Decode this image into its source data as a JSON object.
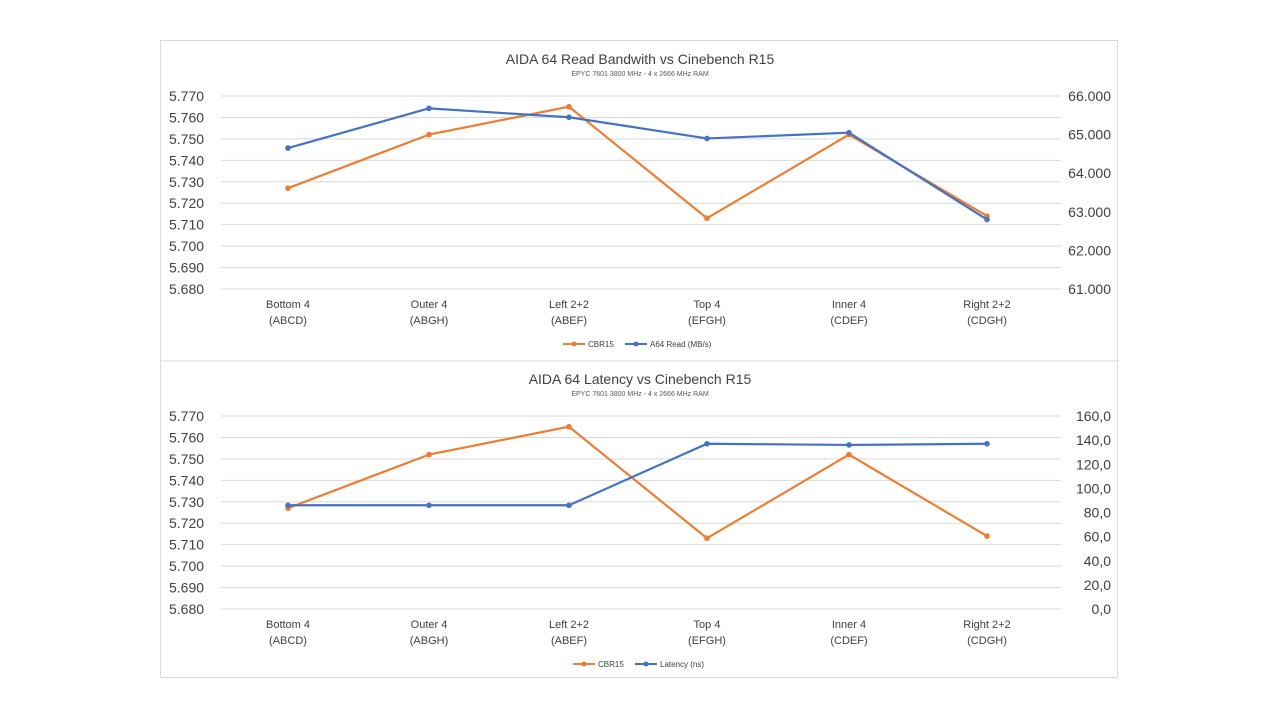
{
  "chart_data": [
    {
      "type": "line",
      "title": "AIDA 64 Read Bandwith vs Cinebench R15",
      "subtitle": "EPYC 7601 3800 MHz - 4 x 2666 MHz RAM",
      "categories": [
        "Bottom 4\n(ABCD)",
        "Outer 4\n(ABGH)",
        "Left 2+2\n(ABEF)",
        "Top 4\n(EFGH)",
        "Inner 4\n(CDEF)",
        "Right 2+2\n(CDGH)"
      ],
      "y_left": {
        "min": 5.68,
        "max": 5.77,
        "step": 0.01,
        "ticks": [
          "5.680",
          "5.690",
          "5.700",
          "5.710",
          "5.720",
          "5.730",
          "5.740",
          "5.750",
          "5.760",
          "5.770"
        ]
      },
      "y_right": {
        "min": 61000,
        "max": 66000,
        "step": 1000,
        "ticks": [
          "61.000",
          "62.000",
          "63.000",
          "64.000",
          "65.000",
          "66.000"
        ]
      },
      "grid": true,
      "legend_position": "bottom",
      "series": [
        {
          "name": "CBR15",
          "axis": "left",
          "color": "#ed7d31",
          "values": [
            5.727,
            5.752,
            5.765,
            5.713,
            5.752,
            5.714
          ]
        },
        {
          "name": "A64 Read (MB/s)",
          "axis": "right",
          "color": "#4472c4",
          "values": [
            64650,
            65680,
            65450,
            64900,
            65050,
            62800
          ]
        }
      ]
    },
    {
      "type": "line",
      "title": "AIDA 64 Latency vs Cinebench R15",
      "subtitle": "EPYC 7601 3800 MHz - 4 x 2666 MHz RAM",
      "categories": [
        "Bottom 4\n(ABCD)",
        "Outer 4\n(ABGH)",
        "Left 2+2\n(ABEF)",
        "Top 4\n(EFGH)",
        "Inner 4\n(CDEF)",
        "Right 2+2\n(CDGH)"
      ],
      "y_left": {
        "min": 5.68,
        "max": 5.77,
        "step": 0.01,
        "ticks": [
          "5.680",
          "5.690",
          "5.700",
          "5.710",
          "5.720",
          "5.730",
          "5.740",
          "5.750",
          "5.760",
          "5.770"
        ]
      },
      "y_right": {
        "min": 0,
        "max": 160,
        "step": 20,
        "ticks": [
          "0,0",
          "20,0",
          "40,0",
          "60,0",
          "80,0",
          "100,0",
          "120,0",
          "140,0",
          "160,0"
        ]
      },
      "grid": true,
      "legend_position": "bottom",
      "series": [
        {
          "name": "CBR15",
          "axis": "left",
          "color": "#ed7d31",
          "values": [
            5.727,
            5.752,
            5.765,
            5.713,
            5.752,
            5.714
          ]
        },
        {
          "name": "Latency (ns)",
          "axis": "right",
          "color": "#4472c4",
          "values": [
            86,
            86,
            86,
            137,
            136,
            137
          ]
        }
      ]
    }
  ]
}
